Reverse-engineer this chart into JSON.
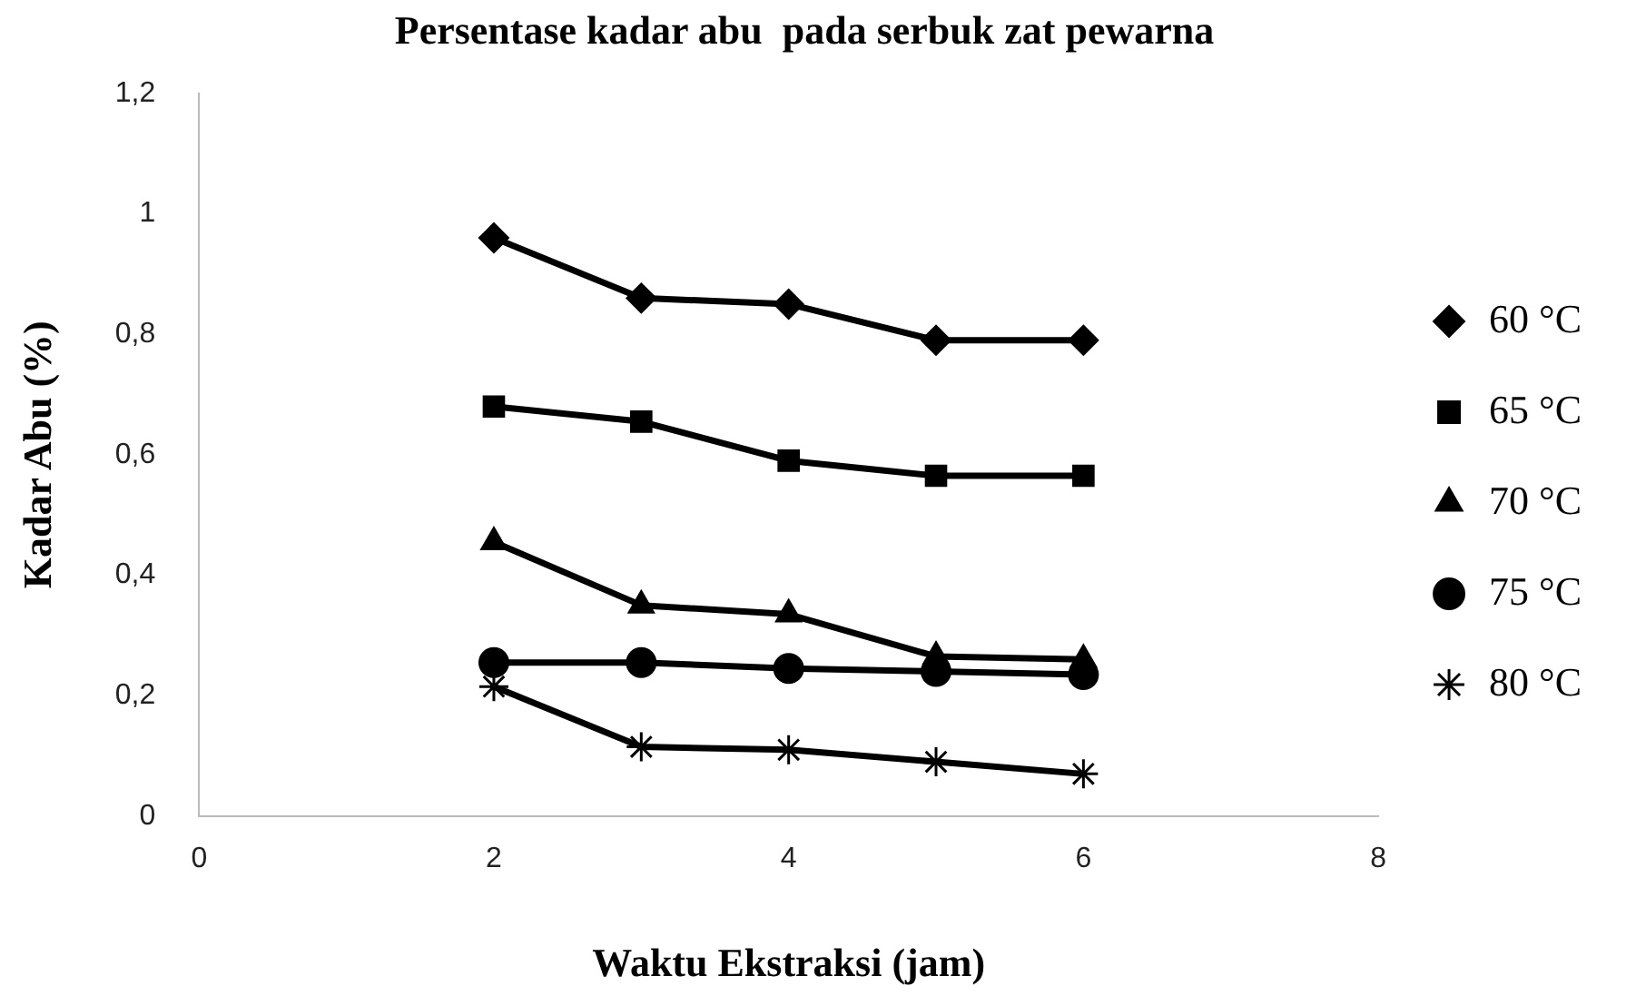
{
  "chart_data": {
    "type": "line",
    "title": "Persentase kadar abu  pada serbuk zat pewarna",
    "xlabel": "Waktu Ekstraksi (jam)",
    "ylabel": "Kadar Abu (%)",
    "x": [
      2,
      3,
      4,
      5,
      6
    ],
    "xlim": [
      0,
      8
    ],
    "xticks": [
      0,
      2,
      4,
      6,
      8
    ],
    "ylim": [
      0,
      1.2
    ],
    "yticks": [
      {
        "value": 0,
        "label": "0"
      },
      {
        "value": 0.2,
        "label": "0,2"
      },
      {
        "value": 0.4,
        "label": "0,4"
      },
      {
        "value": 0.6,
        "label": "0,6"
      },
      {
        "value": 0.8,
        "label": "0,8"
      },
      {
        "value": 1,
        "label": "1"
      },
      {
        "value": 1.2,
        "label": "1,2"
      }
    ],
    "grid": false,
    "legend": "right",
    "line_style": "solid",
    "series": [
      {
        "name": "60 °C",
        "color": "#000000",
        "marker": "diamond",
        "values": [
          0.96,
          0.86,
          0.85,
          0.79,
          0.79
        ]
      },
      {
        "name": "65 °C",
        "color": "#000000",
        "marker": "square",
        "values": [
          0.68,
          0.655,
          0.59,
          0.565,
          0.565
        ]
      },
      {
        "name": "70 °C",
        "color": "#000000",
        "marker": "triangle",
        "values": [
          0.455,
          0.35,
          0.335,
          0.265,
          0.26
        ]
      },
      {
        "name": "75 °C",
        "color": "#000000",
        "marker": "circle",
        "values": [
          0.255,
          0.255,
          0.245,
          0.24,
          0.235
        ]
      },
      {
        "name": "80 °C",
        "color": "#000000",
        "marker": "cross",
        "values": [
          0.215,
          0.115,
          0.11,
          0.09,
          0.07
        ]
      }
    ]
  }
}
